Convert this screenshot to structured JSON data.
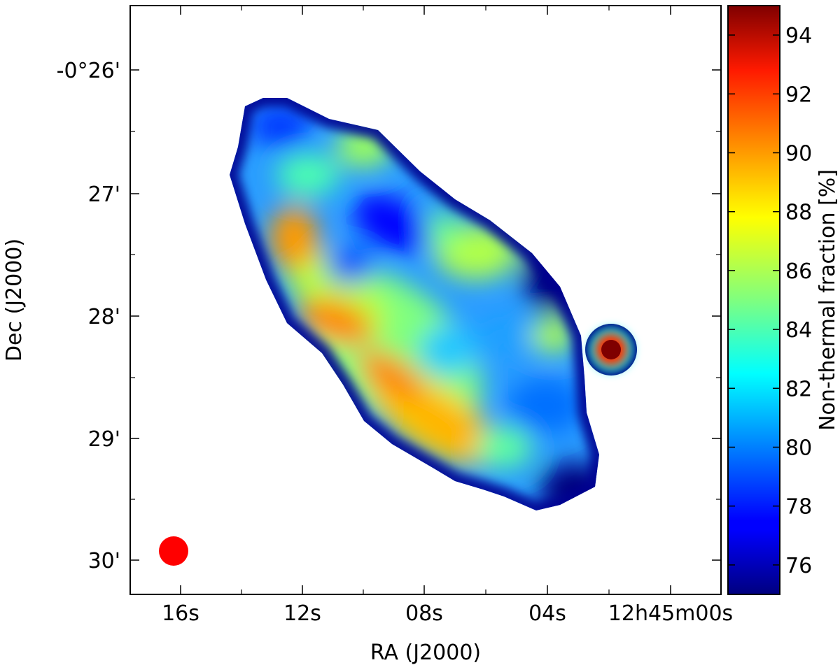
{
  "chart_data": {
    "type": "heatmap",
    "title": "",
    "xlabel": "RA (J2000)",
    "ylabel": "Dec (J2000)",
    "colorbar_label": "Non-thermal fraction [%]",
    "colormap": "jet",
    "colorbar_range": [
      75,
      95
    ],
    "colorbar_ticks": [
      "76",
      "78",
      "80",
      "82",
      "84",
      "86",
      "88",
      "90",
      "92",
      "94"
    ],
    "x_ticks": [
      "16s",
      "12s",
      "08s",
      "04s",
      "12h45m00s"
    ],
    "y_ticks": [
      "-0°26'",
      "27'",
      "28'",
      "29'",
      "30'"
    ],
    "beam_color": "#ff0000",
    "grid": false
  }
}
